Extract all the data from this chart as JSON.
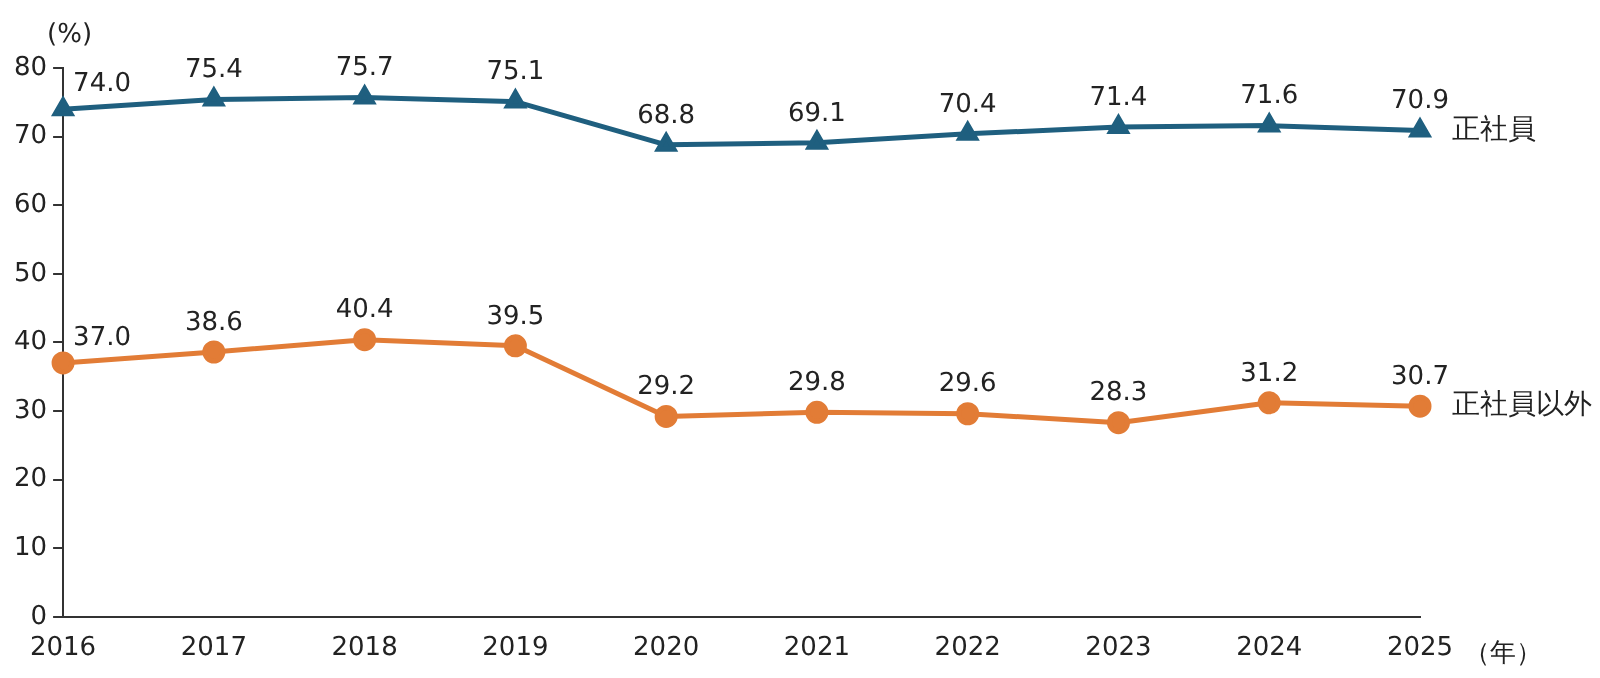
{
  "chart_data": {
    "type": "line",
    "ylabel": "(%)",
    "xlabel": "（年）",
    "categories": [
      "2016",
      "2017",
      "2018",
      "2019",
      "2020",
      "2021",
      "2022",
      "2023",
      "2024",
      "2025"
    ],
    "series": [
      {
        "name": "正社員",
        "color": "#1f5f7f",
        "marker": "triangle",
        "values": [
          74.0,
          75.4,
          75.7,
          75.1,
          68.8,
          69.1,
          70.4,
          71.4,
          71.6,
          70.9
        ],
        "value_labels": [
          "74.0",
          "75.4",
          "75.7",
          "75.1",
          "68.8",
          "69.1",
          "70.4",
          "71.4",
          "71.6",
          "70.9"
        ]
      },
      {
        "name": "正社員以外",
        "color": "#e27c36",
        "marker": "circle",
        "values": [
          37.0,
          38.6,
          40.4,
          39.5,
          29.2,
          29.8,
          29.6,
          28.3,
          31.2,
          30.7
        ],
        "value_labels": [
          "37.0",
          "38.6",
          "40.4",
          "39.5",
          "29.2",
          "29.8",
          "29.6",
          "28.3",
          "31.2",
          "30.7"
        ]
      }
    ],
    "ylim": [
      0,
      80
    ],
    "yticks": [
      0,
      10,
      20,
      30,
      40,
      50,
      60,
      70,
      80
    ],
    "grid": false,
    "legend": false,
    "line_style": "solid"
  }
}
